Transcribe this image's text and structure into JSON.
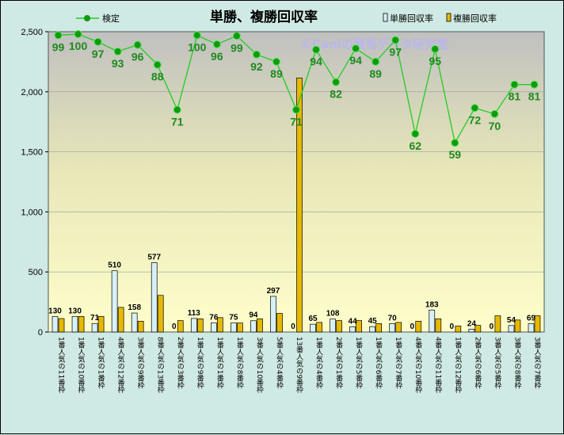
{
  "chart_data": {
    "type": "bar",
    "title": "単勝、複勝回収率",
    "watermark": "©Caniの競馬データ研究室",
    "legend": {
      "line_label": "検定",
      "bar1_label": "単勝回収率",
      "bar2_label": "複勝回収率"
    },
    "ylim": [
      0,
      2500
    ],
    "yticks": [
      "0",
      "500",
      "1,000",
      "1,500",
      "2,000",
      "2,500"
    ],
    "ytick_values": [
      0,
      500,
      1000,
      1500,
      2000,
      2500
    ],
    "colors": {
      "win_bar": "#d8f0f8",
      "place_bar": "#e6b800",
      "line": "#22cc22",
      "marker": "#119911",
      "plot_top": "#c0c0c0",
      "plot_bottom": "#ffffcc"
    },
    "categories": [
      "1番人気の11番枠",
      "1番人気の10番枠",
      "1番人気の1番枠",
      "4番人気の12番枠",
      "3番人気の9番枠",
      "8番人気の13番枠",
      "2番人気の3番枠",
      "1番人気の9番枠",
      "1番人気の1番枠",
      "1番人気の8番枠",
      "3番人気の10番枠",
      "5番人気の4番枠",
      "13番人気の9番枠",
      "1番人気の4番枠",
      "2番人気の1番枠",
      "1番人気の5番枠",
      "1番人気の6番枠",
      "1番人気の7番枠",
      "4番人気の10番枠",
      "4番人気の11番枠",
      "1番人気の12番枠",
      "2番人気の6番枠",
      "3番人気の5番枠",
      "3番人気の8番枠",
      "3番人気の7番枠"
    ],
    "series": [
      {
        "name": "単勝回収率",
        "values": [
          130,
          130,
          71,
          510,
          158,
          577,
          0,
          113,
          76,
          75,
          94,
          297,
          0,
          65,
          108,
          44,
          45,
          70,
          0,
          183,
          0,
          24,
          0,
          54,
          69
        ]
      },
      {
        "name": "複勝回収率",
        "values": [
          112,
          130,
          130,
          205,
          90,
          305,
          95,
          110,
          120,
          75,
          110,
          155,
          2115,
          80,
          95,
          95,
          70,
          80,
          90,
          110,
          50,
          55,
          135,
          100,
          135
        ]
      },
      {
        "name": "検定",
        "values": [
          2470,
          2480,
          2415,
          2335,
          2390,
          2225,
          1850,
          2470,
          2395,
          2465,
          2310,
          2250,
          1850,
          2350,
          2080,
          2360,
          2250,
          2430,
          1650,
          2355,
          1575,
          1865,
          1815,
          2060,
          2060
        ]
      }
    ],
    "bar_labels": [
      "130",
      "130",
      "71",
      "510",
      "158",
      "577",
      "0",
      "113",
      "76",
      "75",
      "94",
      "297",
      "0",
      "65",
      "108",
      "44",
      "45",
      "70",
      "0",
      "183",
      "0",
      "24",
      "0",
      "54",
      "69"
    ],
    "point_labels": [
      "99",
      "100",
      "97",
      "93",
      "96",
      "88",
      "71",
      "100",
      "96",
      "99",
      "92",
      "89",
      "71",
      "94",
      "82",
      "94",
      "89",
      "97",
      "62",
      "95",
      "59",
      "72",
      "70",
      "81",
      "81"
    ]
  }
}
